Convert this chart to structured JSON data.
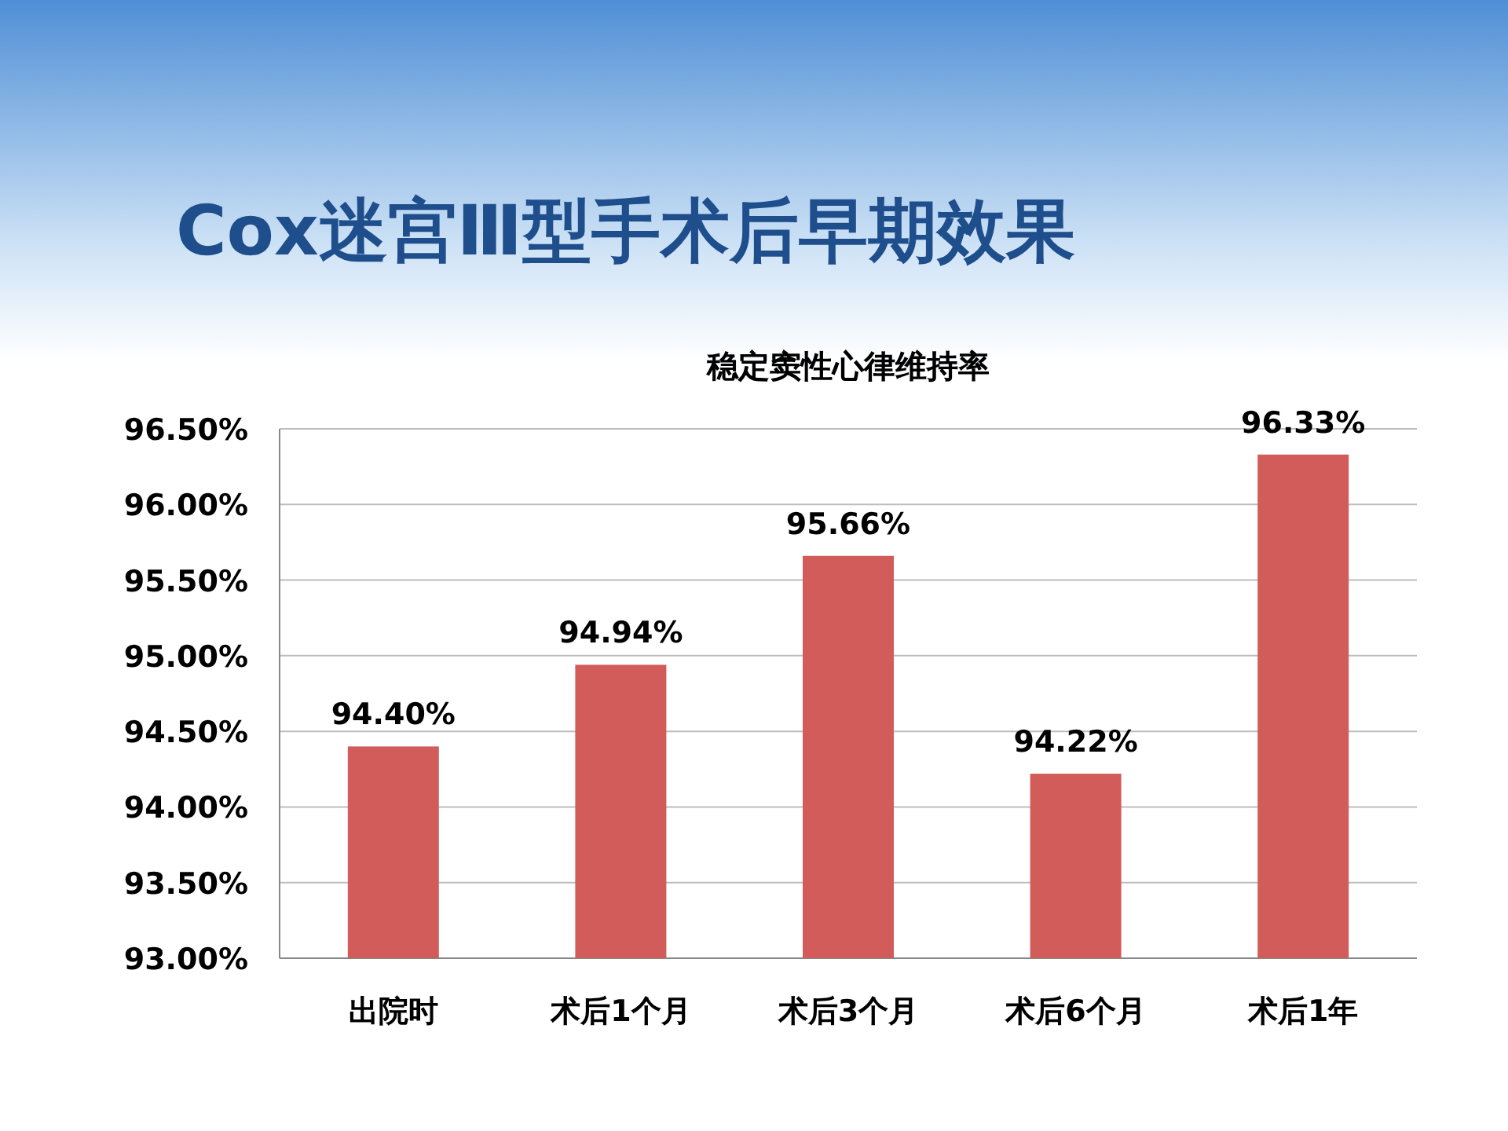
{
  "chart_data": {
    "type": "bar",
    "title": "Cox迷宫Ⅲ型手术后早期效果",
    "subtitle": "稳定窦性心律维持率",
    "categories": [
      "出院时",
      "术后1个月",
      "术后3个月",
      "术后6个月",
      "术后1年"
    ],
    "values": [
      94.4,
      94.94,
      95.66,
      94.22,
      96.33
    ],
    "value_labels": [
      "94.40%",
      "94.94%",
      "95.66%",
      "94.22%",
      "96.33%"
    ],
    "color": "#d25c59",
    "ylim": [
      93,
      96.5
    ],
    "yticks": [
      {
        "value": 93,
        "label": "93.00%"
      },
      {
        "value": 93.5,
        "label": "93.50%"
      },
      {
        "value": 94,
        "label": "94.00%"
      },
      {
        "value": 94.5,
        "label": "94.50%"
      },
      {
        "value": 95,
        "label": "95.00%"
      },
      {
        "value": 95.5,
        "label": "95.50%"
      },
      {
        "value": 96,
        "label": "96.00%"
      },
      {
        "value": 96.5,
        "label": "96.50%"
      }
    ],
    "grid": "y"
  }
}
